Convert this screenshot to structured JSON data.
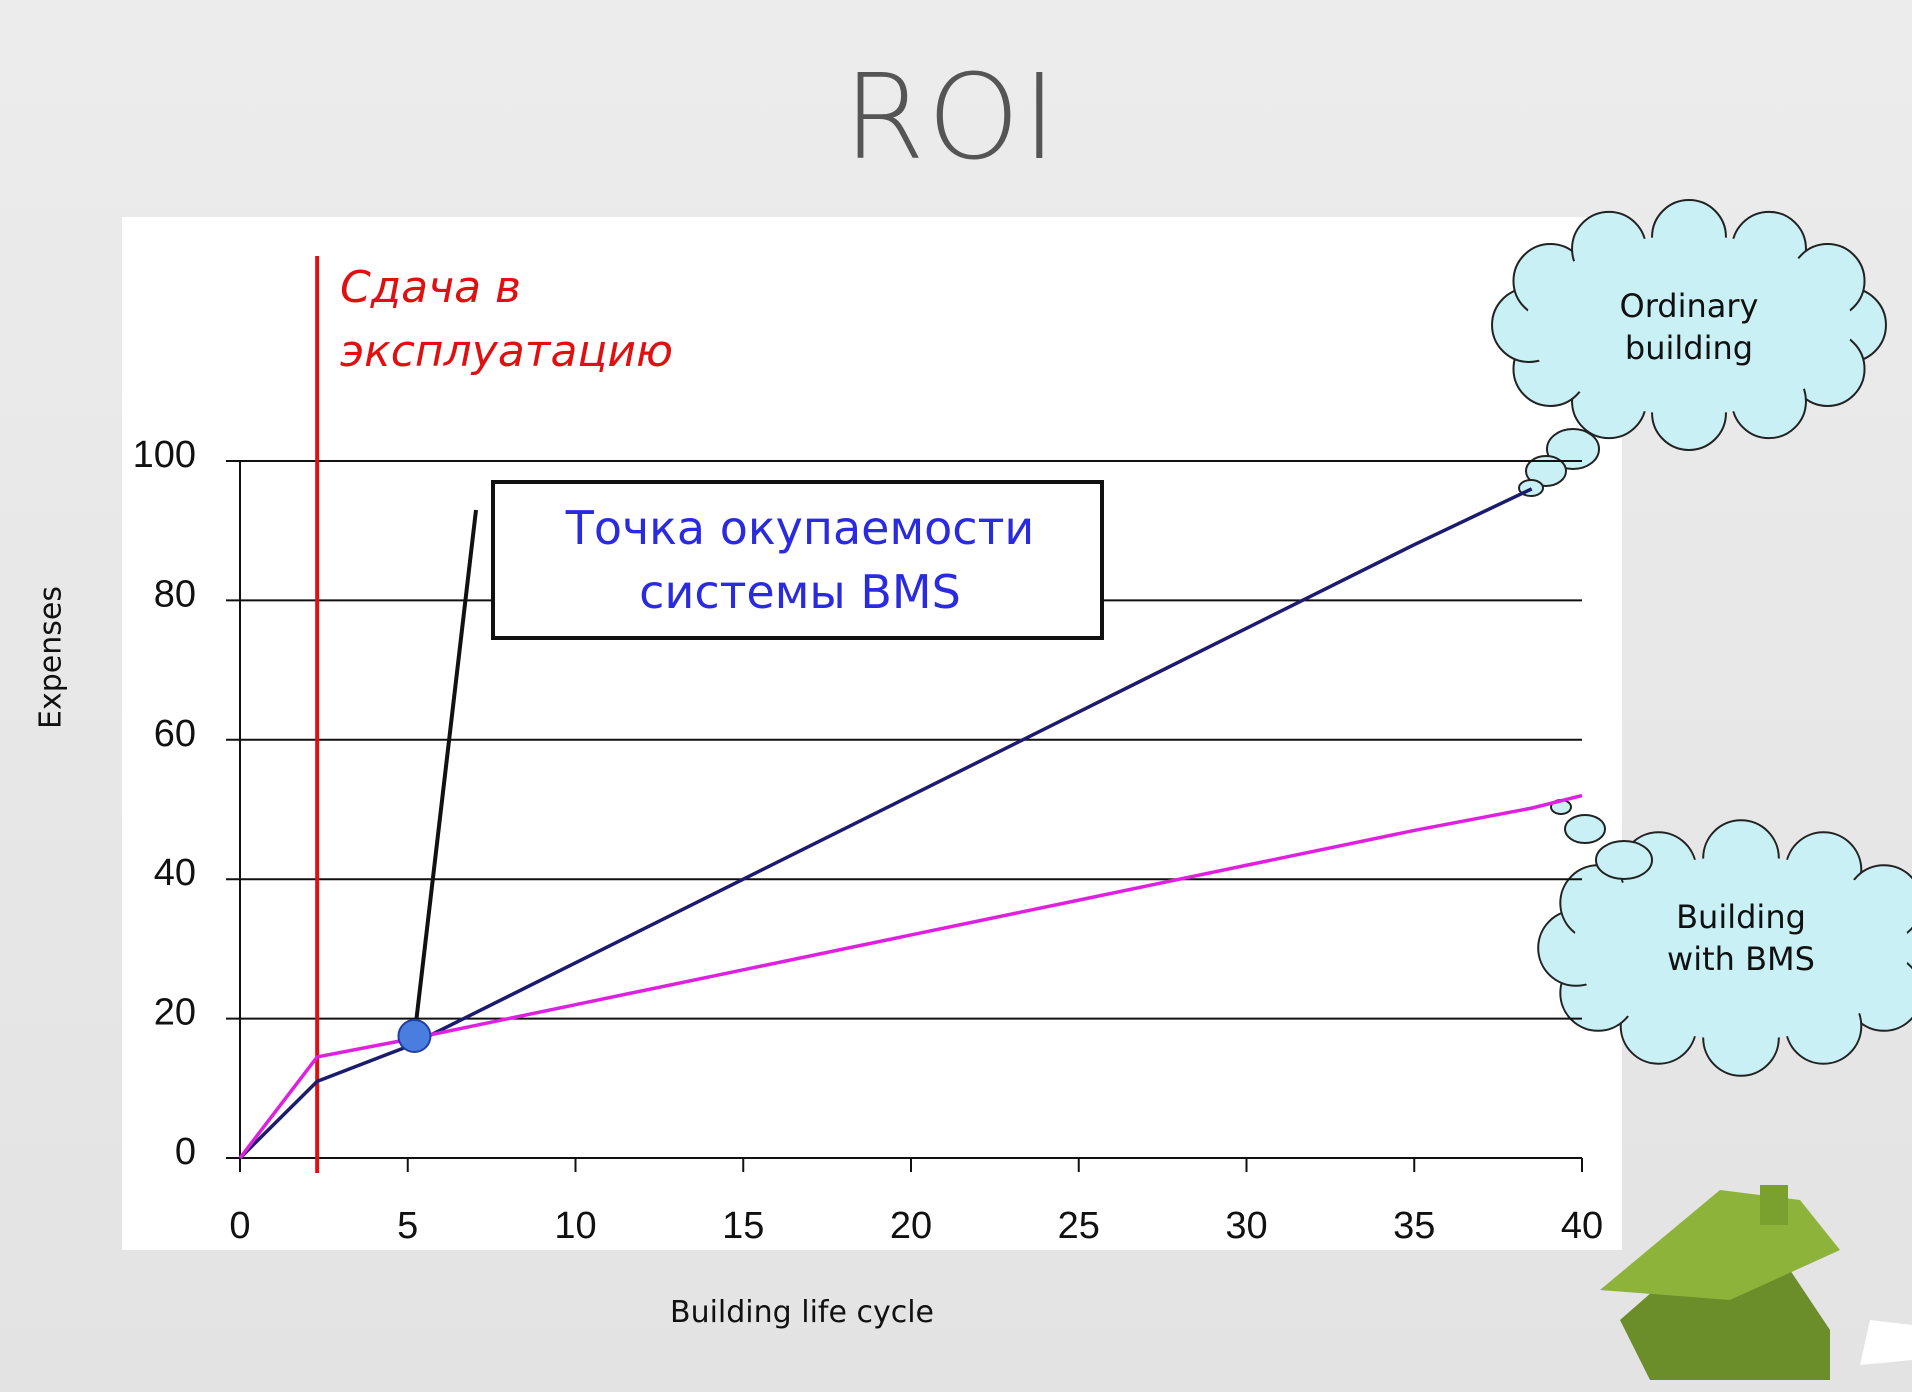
{
  "chart_data": {
    "type": "line",
    "title": "ROI",
    "x_label": "Building life cycle",
    "y_label": "Expenses",
    "x": [
      0,
      2.3,
      5,
      10,
      15,
      20,
      25,
      30,
      35,
      38.5,
      40
    ],
    "series": [
      {
        "name": "Ordinary building",
        "color": "#1c1c6e",
        "values": [
          0,
          11,
          16,
          28,
          40,
          52,
          64,
          76,
          88,
          96,
          null
        ]
      },
      {
        "name": "Building with BMS",
        "color": "#e020e0",
        "values": [
          0,
          14.5,
          17,
          22,
          27,
          32,
          37,
          42,
          47,
          50.2,
          52
        ]
      }
    ],
    "xlim": [
      0,
      40
    ],
    "xticks": [
      0,
      5,
      10,
      15,
      20,
      25,
      30,
      35,
      40
    ],
    "ylim": [
      0,
      100
    ],
    "yticks": [
      0,
      20,
      40,
      60,
      80,
      100
    ],
    "grid": true,
    "milestone": {
      "x": 2.3,
      "label": "Сдача в эксплуатацию",
      "color": "#e01010"
    },
    "breakeven": {
      "x": 5.2,
      "y": 17.5,
      "label": "Точка окупаемости системы BMS",
      "color": "#4a7de0"
    }
  }
}
